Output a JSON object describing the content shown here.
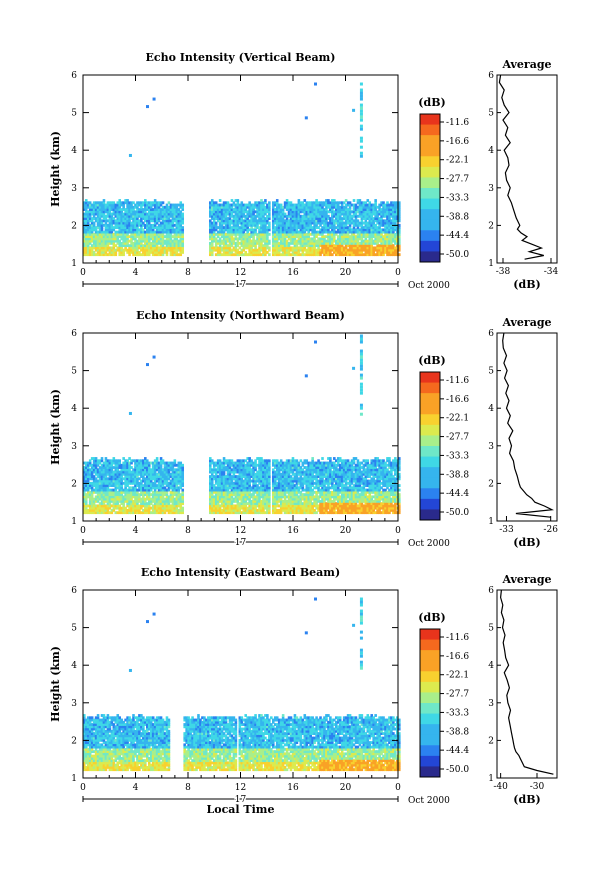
{
  "chart_data": [
    {
      "type": "heatmap",
      "title": "Echo Intensity (Vertical Beam)",
      "ylabel": "Height (km)",
      "xticks": [
        "0",
        "4",
        "8",
        "12",
        "16",
        "20",
        "0"
      ],
      "yticks": [
        "1",
        "2",
        "3",
        "4",
        "5",
        "6"
      ],
      "xlim": [
        0,
        24
      ],
      "ylim": [
        1,
        6
      ],
      "date_label": "17",
      "month_label": "Oct 2000",
      "gaps_hours": [
        [
          7.6,
          9.6
        ],
        [
          14.2,
          14.3
        ]
      ],
      "colorbar": {
        "unit": "(dB)",
        "ticks": [
          "-11.6",
          "-16.6",
          "-22.1",
          "-27.7",
          "-33.3",
          "-38.8",
          "-44.4",
          "-50.0"
        ]
      },
      "profile": {
        "title": "Average",
        "xlabel": "(dB)",
        "xticks": [
          "-38",
          "-34"
        ],
        "xlim": [
          -38.5,
          -33.5
        ],
        "heights": [
          1.1,
          1.2,
          1.3,
          1.4,
          1.5,
          1.6,
          1.7,
          1.8,
          1.9,
          2.0,
          2.2,
          2.4,
          2.6,
          2.8,
          3.0,
          3.2,
          3.4,
          3.6,
          3.8,
          4.0,
          4.2,
          4.4,
          4.6,
          4.8,
          5.0,
          5.2,
          5.4,
          5.6,
          5.8,
          6.0
        ],
        "values": [
          -36.2,
          -34.6,
          -35.8,
          -34.8,
          -35.6,
          -36.4,
          -36.0,
          -36.5,
          -36.8,
          -36.6,
          -36.9,
          -37.1,
          -37.3,
          -37.6,
          -37.4,
          -37.7,
          -37.8,
          -37.5,
          -37.6,
          -37.9,
          -37.4,
          -37.8,
          -37.6,
          -38.0,
          -37.5,
          -37.9,
          -38.1,
          -37.9,
          -38.3,
          -38.2
        ]
      }
    },
    {
      "type": "heatmap",
      "title": "Echo Intensity (Northward Beam)",
      "ylabel": "Height (km)",
      "xticks": [
        "0",
        "4",
        "8",
        "12",
        "16",
        "20",
        "0"
      ],
      "yticks": [
        "1",
        "2",
        "3",
        "4",
        "5",
        "6"
      ],
      "xlim": [
        0,
        24
      ],
      "ylim": [
        1,
        6
      ],
      "date_label": "17",
      "month_label": "Oct 2000",
      "gaps_hours": [
        [
          7.6,
          9.6
        ],
        [
          14.2,
          14.3
        ]
      ],
      "colorbar": {
        "unit": "(dB)",
        "ticks": [
          "-11.6",
          "-16.6",
          "-22.1",
          "-27.7",
          "-33.3",
          "-38.8",
          "-44.4",
          "-50.0"
        ]
      },
      "profile": {
        "title": "Average",
        "xlabel": "(dB)",
        "xticks": [
          "-33",
          "-26"
        ],
        "xlim": [
          -34.5,
          -25
        ],
        "heights": [
          1.1,
          1.2,
          1.3,
          1.4,
          1.5,
          1.6,
          1.7,
          1.8,
          1.9,
          2.0,
          2.2,
          2.4,
          2.6,
          2.8,
          3.0,
          3.2,
          3.4,
          3.6,
          3.8,
          4.0,
          4.2,
          4.4,
          4.6,
          4.8,
          5.0,
          5.2,
          5.4,
          5.6,
          5.8,
          6.0
        ],
        "values": [
          -26.0,
          -31.5,
          -25.8,
          -27.0,
          -28.5,
          -29.0,
          -29.8,
          -30.3,
          -30.8,
          -31.0,
          -31.3,
          -31.7,
          -31.9,
          -32.5,
          -32.2,
          -32.6,
          -32.0,
          -32.8,
          -32.4,
          -33.0,
          -32.6,
          -33.1,
          -32.7,
          -33.3,
          -32.9,
          -33.4,
          -33.0,
          -33.5,
          -33.6,
          -33.4
        ]
      }
    },
    {
      "type": "heatmap",
      "title": "Echo Intensity (Eastward Beam)",
      "ylabel": "Height (km)",
      "xlabel": "Local Time",
      "xticks": [
        "0",
        "4",
        "8",
        "12",
        "16",
        "20",
        "0"
      ],
      "yticks": [
        "1",
        "2",
        "3",
        "4",
        "5",
        "6"
      ],
      "xlim": [
        0,
        24
      ],
      "ylim": [
        1,
        6
      ],
      "date_label": "17",
      "month_label": "Oct 2000",
      "gaps_hours": [
        [
          6.6,
          7.6
        ],
        [
          11.6,
          11.8
        ]
      ],
      "colorbar": {
        "unit": "(dB)",
        "ticks": [
          "-11.6",
          "-16.6",
          "-22.1",
          "-27.7",
          "-33.3",
          "-38.8",
          "-44.4",
          "-50.0"
        ]
      },
      "profile": {
        "title": "Average",
        "xlabel": "(dB)",
        "xticks": [
          "-40",
          "-30"
        ],
        "xlim": [
          -41,
          -24.5
        ],
        "heights": [
          1.1,
          1.2,
          1.3,
          1.4,
          1.5,
          1.6,
          1.7,
          1.8,
          1.9,
          2.0,
          2.2,
          2.4,
          2.6,
          2.8,
          3.0,
          3.2,
          3.4,
          3.6,
          3.8,
          4.0,
          4.2,
          4.4,
          4.6,
          4.8,
          5.0,
          5.2,
          5.4,
          5.6,
          5.8,
          6.0
        ],
        "values": [
          -25.5,
          -30.0,
          -33.5,
          -34.0,
          -34.5,
          -35.0,
          -35.8,
          -36.2,
          -36.4,
          -36.6,
          -37.0,
          -37.4,
          -37.8,
          -37.3,
          -38.0,
          -38.3,
          -37.6,
          -38.2,
          -39.0,
          -37.8,
          -38.6,
          -38.9,
          -39.3,
          -38.8,
          -39.5,
          -39.1,
          -39.8,
          -39.4,
          -40.0,
          -39.8
        ]
      }
    }
  ]
}
